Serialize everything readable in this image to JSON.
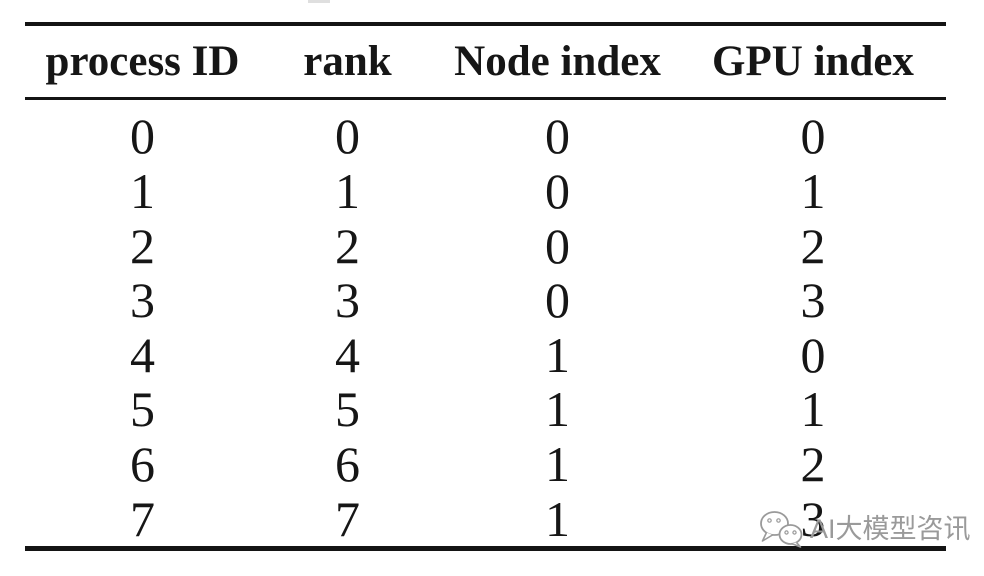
{
  "table": {
    "columns": [
      "process ID",
      "rank",
      "Node index",
      "GPU index"
    ],
    "rows": [
      [
        "0",
        "0",
        "0",
        "0"
      ],
      [
        "1",
        "1",
        "0",
        "1"
      ],
      [
        "2",
        "2",
        "0",
        "2"
      ],
      [
        "3",
        "3",
        "0",
        "3"
      ],
      [
        "4",
        "4",
        "1",
        "0"
      ],
      [
        "5",
        "5",
        "1",
        "1"
      ],
      [
        "6",
        "6",
        "1",
        "2"
      ],
      [
        "7",
        "7",
        "1",
        "3"
      ]
    ]
  },
  "watermark": {
    "label": "AI大模型咨讯",
    "icon": "wechat-icon",
    "color": "#9a9a9a"
  },
  "colors": {
    "text": "#161616",
    "rule": "#141414",
    "background": "#ffffff"
  },
  "chart_data": {
    "type": "table",
    "title": "",
    "columns": [
      "process ID",
      "rank",
      "Node index",
      "GPU index"
    ],
    "rows": [
      [
        0,
        0,
        0,
        0
      ],
      [
        1,
        1,
        0,
        1
      ],
      [
        2,
        2,
        0,
        2
      ],
      [
        3,
        3,
        0,
        3
      ],
      [
        4,
        4,
        1,
        0
      ],
      [
        5,
        5,
        1,
        1
      ],
      [
        6,
        6,
        1,
        2
      ],
      [
        7,
        7,
        1,
        3
      ]
    ]
  }
}
